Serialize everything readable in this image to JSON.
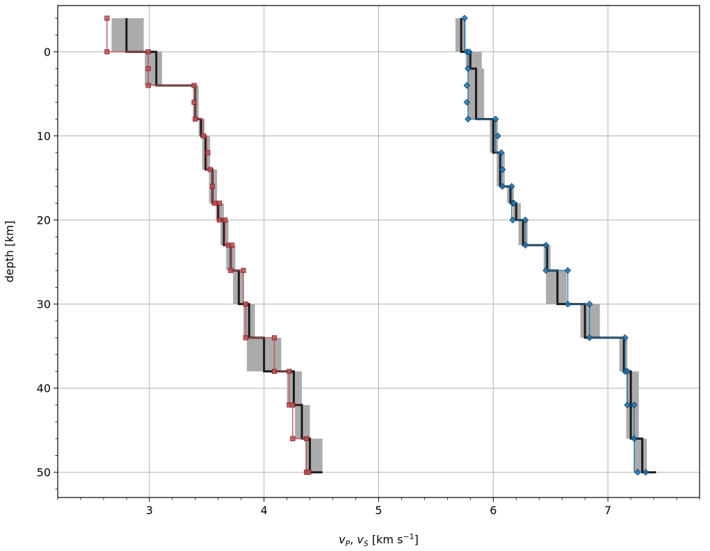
{
  "chart_data": {
    "type": "line",
    "title": "",
    "xlabel": "v_P, v_S [km s^-1]",
    "ylabel": "depth [km]",
    "xlim": [
      2.2,
      7.8
    ],
    "ylim": [
      53,
      -5.5
    ],
    "y_inverted": true,
    "grid": true,
    "legend": "none",
    "xticks": [
      3,
      4,
      5,
      6,
      7
    ],
    "yticks": [
      0,
      10,
      20,
      30,
      40,
      50
    ],
    "x_minor_step": 0.2,
    "y_minor_step": 2,
    "colors": {
      "vs_profile": "#c44e52",
      "vp_profile": "#1f77b4",
      "reference": "#1a1a1a",
      "uncertainty_band": "#a6a6a6",
      "grid": "#b0b0b0"
    },
    "series": [
      {
        "kind": "uncertainty-band",
        "color": "#a6a6a6",
        "boxes": [
          {
            "x0": 2.67,
            "x1": 2.95,
            "y0": -4,
            "y1": 0
          },
          {
            "x0": 2.96,
            "x1": 3.11,
            "y0": 0,
            "y1": 4
          },
          {
            "x0": 3.38,
            "x1": 3.43,
            "y0": 4,
            "y1": 8
          },
          {
            "x0": 3.43,
            "x1": 3.48,
            "y0": 8,
            "y1": 10
          },
          {
            "x0": 3.46,
            "x1": 3.53,
            "y0": 10,
            "y1": 14
          },
          {
            "x0": 3.52,
            "x1": 3.59,
            "y0": 14,
            "y1": 18
          },
          {
            "x0": 3.58,
            "x1": 3.65,
            "y0": 18,
            "y1": 20
          },
          {
            "x0": 3.62,
            "x1": 3.69,
            "y0": 20,
            "y1": 23
          },
          {
            "x0": 3.67,
            "x1": 3.75,
            "y0": 23,
            "y1": 26
          },
          {
            "x0": 3.73,
            "x1": 3.82,
            "y0": 26,
            "y1": 30
          },
          {
            "x0": 3.82,
            "x1": 3.92,
            "y0": 30,
            "y1": 34
          },
          {
            "x0": 3.85,
            "x1": 4.15,
            "y0": 34,
            "y1": 38
          },
          {
            "x0": 4.2,
            "x1": 4.33,
            "y0": 38,
            "y1": 42
          },
          {
            "x0": 4.27,
            "x1": 4.4,
            "y0": 42,
            "y1": 46
          },
          {
            "x0": 4.36,
            "x1": 4.51,
            "y0": 46,
            "y1": 50
          },
          {
            "x0": 5.67,
            "x1": 5.76,
            "y0": -4,
            "y1": 0
          },
          {
            "x0": 5.76,
            "x1": 5.9,
            "y0": 0,
            "y1": 2
          },
          {
            "x0": 5.78,
            "x1": 5.92,
            "y0": 2,
            "y1": 8
          },
          {
            "x0": 5.97,
            "x1": 6.04,
            "y0": 8,
            "y1": 12
          },
          {
            "x0": 6.03,
            "x1": 6.1,
            "y0": 12,
            "y1": 16
          },
          {
            "x0": 6.12,
            "x1": 6.18,
            "y0": 16,
            "y1": 18
          },
          {
            "x0": 6.17,
            "x1": 6.24,
            "y0": 18,
            "y1": 20
          },
          {
            "x0": 6.22,
            "x1": 6.3,
            "y0": 20,
            "y1": 23
          },
          {
            "x0": 6.44,
            "x1": 6.5,
            "y0": 23,
            "y1": 26
          },
          {
            "x0": 6.46,
            "x1": 6.64,
            "y0": 26,
            "y1": 30
          },
          {
            "x0": 6.76,
            "x1": 6.93,
            "y0": 30,
            "y1": 34
          },
          {
            "x0": 7.1,
            "x1": 7.17,
            "y0": 34,
            "y1": 38
          },
          {
            "x0": 7.16,
            "x1": 7.27,
            "y0": 38,
            "y1": 46
          },
          {
            "x0": 7.23,
            "x1": 7.34,
            "y0": 46,
            "y1": 50
          }
        ]
      },
      {
        "kind": "reference-profile",
        "color": "#1a1a1a",
        "steps": [
          {
            "v": 2.8,
            "top": -4,
            "bottom": 0
          },
          {
            "v": 3.06,
            "top": 0,
            "bottom": 4
          },
          {
            "v": 3.4,
            "top": 4,
            "bottom": 8
          },
          {
            "v": 3.45,
            "top": 8,
            "bottom": 10
          },
          {
            "v": 3.49,
            "top": 10,
            "bottom": 14
          },
          {
            "v": 3.55,
            "top": 14,
            "bottom": 18
          },
          {
            "v": 3.6,
            "top": 18,
            "bottom": 20
          },
          {
            "v": 3.65,
            "top": 20,
            "bottom": 23
          },
          {
            "v": 3.71,
            "top": 23,
            "bottom": 26
          },
          {
            "v": 3.78,
            "top": 26,
            "bottom": 30
          },
          {
            "v": 3.87,
            "top": 30,
            "bottom": 34
          },
          {
            "v": 4.0,
            "top": 34,
            "bottom": 38
          },
          {
            "v": 4.26,
            "top": 38,
            "bottom": 42
          },
          {
            "v": 4.33,
            "top": 42,
            "bottom": 46
          },
          {
            "v": 4.4,
            "top": 46,
            "bottom": 50
          }
        ],
        "end_x": 4.51
      },
      {
        "kind": "reference-profile",
        "color": "#1a1a1a",
        "steps": [
          {
            "v": 5.72,
            "top": -4,
            "bottom": 0
          },
          {
            "v": 5.8,
            "top": 0,
            "bottom": 2
          },
          {
            "v": 5.85,
            "top": 2,
            "bottom": 8
          },
          {
            "v": 6.0,
            "top": 8,
            "bottom": 12
          },
          {
            "v": 6.06,
            "top": 12,
            "bottom": 16
          },
          {
            "v": 6.15,
            "top": 16,
            "bottom": 18
          },
          {
            "v": 6.2,
            "top": 18,
            "bottom": 20
          },
          {
            "v": 6.26,
            "top": 20,
            "bottom": 23
          },
          {
            "v": 6.47,
            "top": 23,
            "bottom": 26
          },
          {
            "v": 6.56,
            "top": 26,
            "bottom": 30
          },
          {
            "v": 6.8,
            "top": 30,
            "bottom": 34
          },
          {
            "v": 7.14,
            "top": 34,
            "bottom": 38
          },
          {
            "v": 7.2,
            "top": 38,
            "bottom": 46
          },
          {
            "v": 7.3,
            "top": 46,
            "bottom": 50
          }
        ],
        "end_x": 7.42
      },
      {
        "kind": "model-profile",
        "color": "#c44e52",
        "marker": "square",
        "steps": [
          {
            "v": 2.63,
            "top": -4,
            "bottom": 0
          },
          {
            "v": 2.99,
            "top": 0,
            "bottom": 4
          },
          {
            "v": 3.4,
            "top": 4,
            "bottom": 8
          },
          {
            "v": 3.47,
            "top": 8,
            "bottom": 10
          },
          {
            "v": 3.5,
            "top": 10,
            "bottom": 14
          },
          {
            "v": 3.55,
            "top": 14,
            "bottom": 18
          },
          {
            "v": 3.61,
            "top": 18,
            "bottom": 20
          },
          {
            "v": 3.66,
            "top": 20,
            "bottom": 23
          },
          {
            "v": 3.71,
            "top": 23,
            "bottom": 26
          },
          {
            "v": 3.82,
            "top": 26,
            "bottom": 30
          },
          {
            "v": 3.84,
            "top": 30,
            "bottom": 34
          },
          {
            "v": 4.09,
            "top": 34,
            "bottom": 38
          },
          {
            "v": 4.22,
            "top": 38,
            "bottom": 42
          },
          {
            "v": 4.25,
            "top": 42,
            "bottom": 46
          },
          {
            "v": 4.37,
            "top": 46,
            "bottom": 50
          }
        ],
        "markers": [
          {
            "x": 2.63,
            "y": -4
          },
          {
            "x": 2.63,
            "y": 0
          },
          {
            "x": 2.99,
            "y": 0
          },
          {
            "x": 2.99,
            "y": 2
          },
          {
            "x": 2.99,
            "y": 4
          },
          {
            "x": 3.39,
            "y": 4
          },
          {
            "x": 3.39,
            "y": 6
          },
          {
            "x": 3.4,
            "y": 8
          },
          {
            "x": 3.47,
            "y": 10
          },
          {
            "x": 3.51,
            "y": 12
          },
          {
            "x": 3.53,
            "y": 14
          },
          {
            "x": 3.55,
            "y": 16
          },
          {
            "x": 3.57,
            "y": 18
          },
          {
            "x": 3.61,
            "y": 18
          },
          {
            "x": 3.61,
            "y": 20
          },
          {
            "x": 3.66,
            "y": 20
          },
          {
            "x": 3.69,
            "y": 23
          },
          {
            "x": 3.72,
            "y": 23
          },
          {
            "x": 3.71,
            "y": 26
          },
          {
            "x": 3.82,
            "y": 26
          },
          {
            "x": 3.84,
            "y": 30
          },
          {
            "x": 3.84,
            "y": 34
          },
          {
            "x": 4.09,
            "y": 34
          },
          {
            "x": 4.09,
            "y": 38
          },
          {
            "x": 4.22,
            "y": 38
          },
          {
            "x": 4.22,
            "y": 42
          },
          {
            "x": 4.25,
            "y": 42
          },
          {
            "x": 4.25,
            "y": 46
          },
          {
            "x": 4.37,
            "y": 46
          },
          {
            "x": 4.37,
            "y": 50
          },
          {
            "x": 4.39,
            "y": 50
          }
        ]
      },
      {
        "kind": "model-profile",
        "color": "#1f77b4",
        "marker": "diamond",
        "steps": [
          {
            "v": 5.75,
            "top": -4,
            "bottom": 0
          },
          {
            "v": 5.78,
            "top": 0,
            "bottom": 8
          },
          {
            "v": 6.02,
            "top": 8,
            "bottom": 12
          },
          {
            "v": 6.07,
            "top": 12,
            "bottom": 16
          },
          {
            "v": 6.16,
            "top": 16,
            "bottom": 20
          },
          {
            "v": 6.28,
            "top": 20,
            "bottom": 23
          },
          {
            "v": 6.46,
            "top": 23,
            "bottom": 26
          },
          {
            "v": 6.65,
            "top": 26,
            "bottom": 30
          },
          {
            "v": 6.84,
            "top": 30,
            "bottom": 34
          },
          {
            "v": 7.15,
            "top": 34,
            "bottom": 38
          },
          {
            "v": 7.17,
            "top": 38,
            "bottom": 42
          },
          {
            "v": 7.23,
            "top": 42,
            "bottom": 50
          }
        ],
        "markers": [
          {
            "x": 5.75,
            "y": -4
          },
          {
            "x": 5.77,
            "y": 0
          },
          {
            "x": 5.79,
            "y": 0
          },
          {
            "x": 5.78,
            "y": 2
          },
          {
            "x": 5.77,
            "y": 4
          },
          {
            "x": 5.77,
            "y": 6
          },
          {
            "x": 5.78,
            "y": 8
          },
          {
            "x": 6.02,
            "y": 8
          },
          {
            "x": 6.04,
            "y": 10
          },
          {
            "x": 6.07,
            "y": 12
          },
          {
            "x": 6.08,
            "y": 14
          },
          {
            "x": 6.08,
            "y": 16
          },
          {
            "x": 6.16,
            "y": 16
          },
          {
            "x": 6.17,
            "y": 18
          },
          {
            "x": 6.18,
            "y": 18
          },
          {
            "x": 6.17,
            "y": 20
          },
          {
            "x": 6.28,
            "y": 20
          },
          {
            "x": 6.28,
            "y": 23
          },
          {
            "x": 6.46,
            "y": 23
          },
          {
            "x": 6.46,
            "y": 26
          },
          {
            "x": 6.65,
            "y": 26
          },
          {
            "x": 6.65,
            "y": 30
          },
          {
            "x": 6.84,
            "y": 30
          },
          {
            "x": 6.84,
            "y": 34
          },
          {
            "x": 7.15,
            "y": 34
          },
          {
            "x": 7.15,
            "y": 38
          },
          {
            "x": 7.17,
            "y": 38
          },
          {
            "x": 7.17,
            "y": 42
          },
          {
            "x": 7.23,
            "y": 42
          },
          {
            "x": 7.23,
            "y": 46
          },
          {
            "x": 7.26,
            "y": 50
          },
          {
            "x": 7.33,
            "y": 50
          }
        ]
      }
    ]
  }
}
